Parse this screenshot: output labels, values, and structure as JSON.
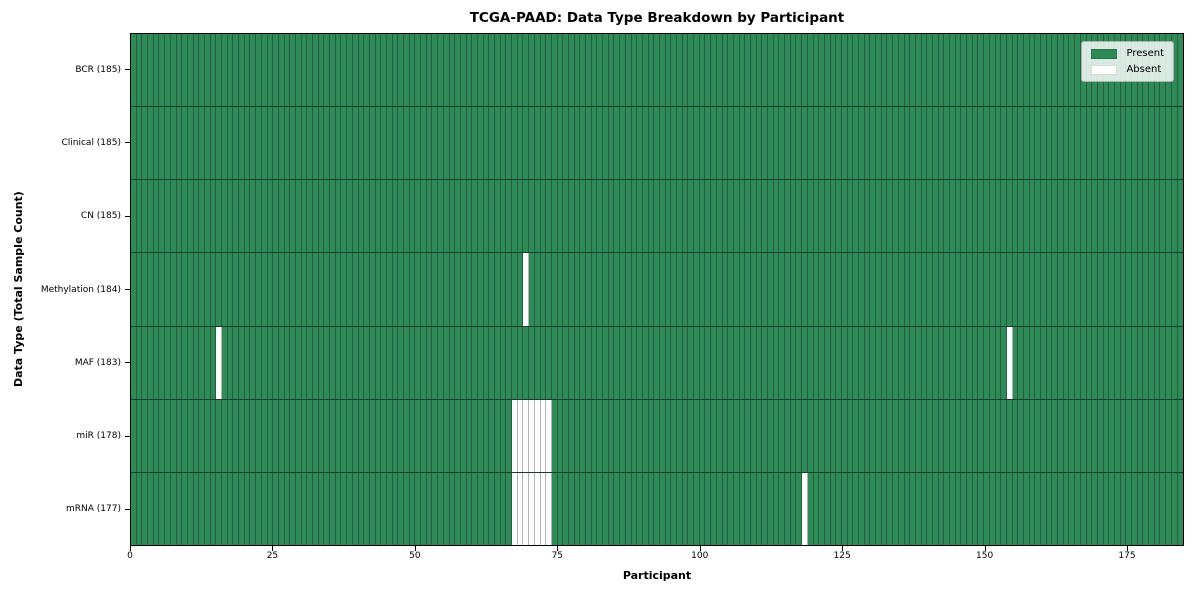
{
  "chart_data": {
    "type": "heatmap",
    "title": "TCGA-PAAD: Data Type Breakdown by Participant",
    "xlabel": "Participant",
    "ylabel": "Data Type (Total Sample Count)",
    "n_participants": 185,
    "xlim": [
      0,
      185
    ],
    "x_ticks": [
      0,
      25,
      50,
      75,
      100,
      125,
      150,
      175
    ],
    "grid": false,
    "legend_position": "upper right",
    "legend": [
      {
        "label": "Present",
        "color": "#2E8B57"
      },
      {
        "label": "Absent",
        "color": "#FFFFFF"
      }
    ],
    "colors": {
      "present": "#2E8B57",
      "absent": "#FFFFFF",
      "cell_edge": "rgba(0,0,0,0.30)",
      "row_edge": "rgba(0,0,0,0.55)"
    },
    "rows": [
      {
        "label": "BCR (185)",
        "data_type": "BCR",
        "total_sample_count": 185,
        "absent_participants": []
      },
      {
        "label": "Clinical (185)",
        "data_type": "Clinical",
        "total_sample_count": 185,
        "absent_participants": []
      },
      {
        "label": "CN (185)",
        "data_type": "CN",
        "total_sample_count": 185,
        "absent_participants": []
      },
      {
        "label": "Methylation (184)",
        "data_type": "Methylation",
        "total_sample_count": 184,
        "absent_participants": [
          69
        ]
      },
      {
        "label": "MAF (183)",
        "data_type": "MAF",
        "total_sample_count": 183,
        "absent_participants": [
          15,
          154
        ]
      },
      {
        "label": "miR (178)",
        "data_type": "miR",
        "total_sample_count": 178,
        "absent_participants": [
          67,
          68,
          69,
          70,
          71,
          72,
          73
        ]
      },
      {
        "label": "mRNA (177)",
        "data_type": "mRNA",
        "total_sample_count": 177,
        "absent_participants": [
          67,
          68,
          69,
          70,
          71,
          72,
          73,
          118
        ]
      }
    ]
  }
}
